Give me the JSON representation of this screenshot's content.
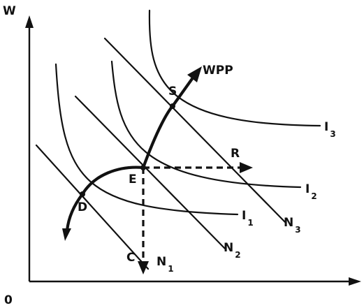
{
  "axes": {
    "y_label": "W",
    "origin_label": "0"
  },
  "points": {
    "S": "S",
    "E": "E",
    "D": "D",
    "R": "R",
    "C": "C"
  },
  "wpp_label": "WPP",
  "indifference_curves": [
    {
      "letter": "I",
      "sub": "1"
    },
    {
      "letter": "I",
      "sub": "2"
    },
    {
      "letter": "I",
      "sub": "3"
    }
  ],
  "budget_lines": [
    {
      "letter": "N",
      "sub": "1"
    },
    {
      "letter": "N",
      "sub": "2"
    },
    {
      "letter": "N",
      "sub": "3"
    }
  ]
}
